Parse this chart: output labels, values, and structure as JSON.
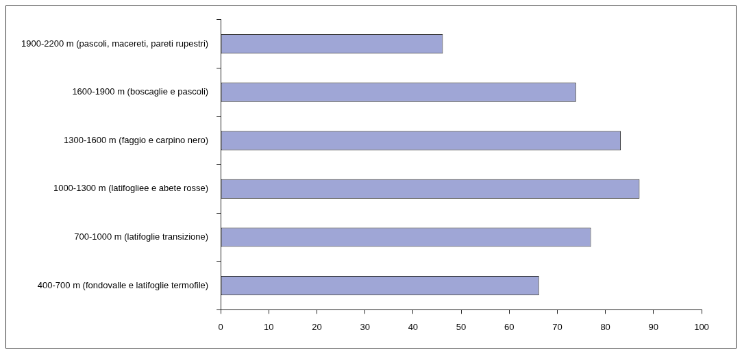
{
  "chart_data": {
    "type": "bar",
    "orientation": "horizontal",
    "categories": [
      "1900-2200 m (pascoli, macereti, pareti rupestri)",
      "1600-1900 m (boscaglie e pascoli)",
      "1300-1600 m (faggio e carpino nero)",
      "1000-1300 m (latifogliee e abete rosse)",
      "700-1000 m (latifoglie transizione)",
      "400-700 m (fondovalle e latifoglie termofile)"
    ],
    "values": [
      46.2,
      73.9,
      83.2,
      87.1,
      77.0,
      66.2
    ],
    "color": "#9fa6d6",
    "xlim": [
      0,
      100
    ],
    "xticks": [
      0,
      10,
      20,
      30,
      40,
      50,
      60,
      70,
      80,
      90,
      100
    ],
    "grid": false,
    "legend": false
  }
}
